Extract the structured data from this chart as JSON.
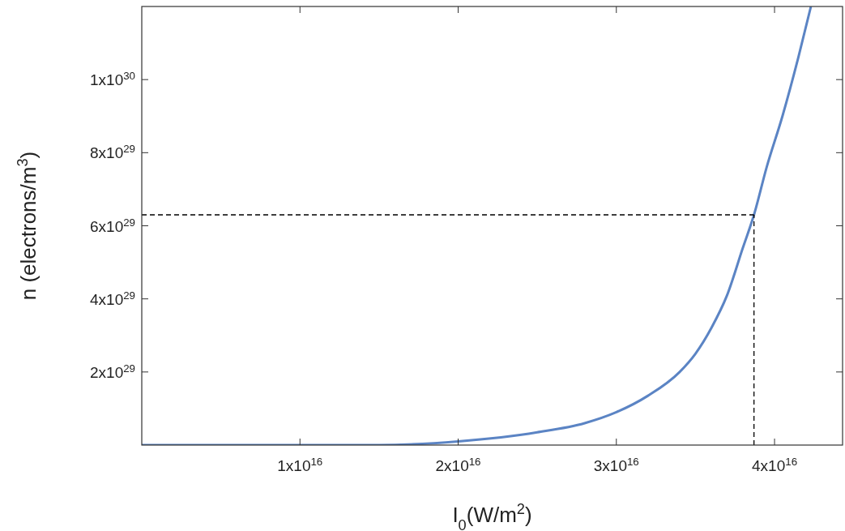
{
  "chart_data": {
    "type": "line",
    "xlabel": "I$_{0}$(W/m$^{2}$)",
    "ylabel": "n (electrons/m$^{3}$)",
    "x": [
      0,
      5000000000000000.0,
      1e+16,
      1.5e+16,
      2e+16,
      2.5e+16,
      2.8e+16,
      3e+16,
      3.2e+16,
      3.4e+16,
      3.5e+16,
      3.6e+16,
      3.7e+16,
      3.8e+16,
      3.87e+16,
      3.95e+16,
      4.05e+16,
      4.15e+16,
      4.23e+16
    ],
    "series": [
      {
        "color": "#5b84c4",
        "values": [
          0,
          0,
          0,
          0,
          1e+28,
          3.5e+28,
          6e+28,
          9e+28,
          1.35e+29,
          2e+29,
          2.5e+29,
          3.2e+29,
          4.1e+29,
          5.4e+29,
          6.3e+29,
          7.6e+29,
          9e+29,
          1.06e+30,
          1.2e+30
        ]
      }
    ],
    "xlim": [
      0,
      4.43e+16
    ],
    "ylim": [
      0,
      1.2e+30
    ],
    "xticks": [
      {
        "value": 1e+16,
        "label": "1x10$^{16}$"
      },
      {
        "value": 2e+16,
        "label": "2x10$^{16}$"
      },
      {
        "value": 3e+16,
        "label": "3x10$^{16}$"
      },
      {
        "value": 4e+16,
        "label": "4x10$^{16}$"
      }
    ],
    "yticks": [
      {
        "value": 2e+29,
        "label": "2x10$^{29}$"
      },
      {
        "value": 4e+29,
        "label": "4x10$^{29}$"
      },
      {
        "value": 6e+29,
        "label": "6x10$^{29}$"
      },
      {
        "value": 8e+29,
        "label": "8x10$^{29}$"
      },
      {
        "value": 1e+30,
        "label": "1x10$^{30}$"
      }
    ],
    "ref_lines": [
      {
        "axis": "y",
        "value": 6.3e+29,
        "color": "#000000",
        "line_style": "dashed"
      },
      {
        "axis": "x",
        "value": 3.87e+16,
        "color": "#000000",
        "line_style": "dashed"
      }
    ],
    "grid": false,
    "line_style": "solid"
  }
}
